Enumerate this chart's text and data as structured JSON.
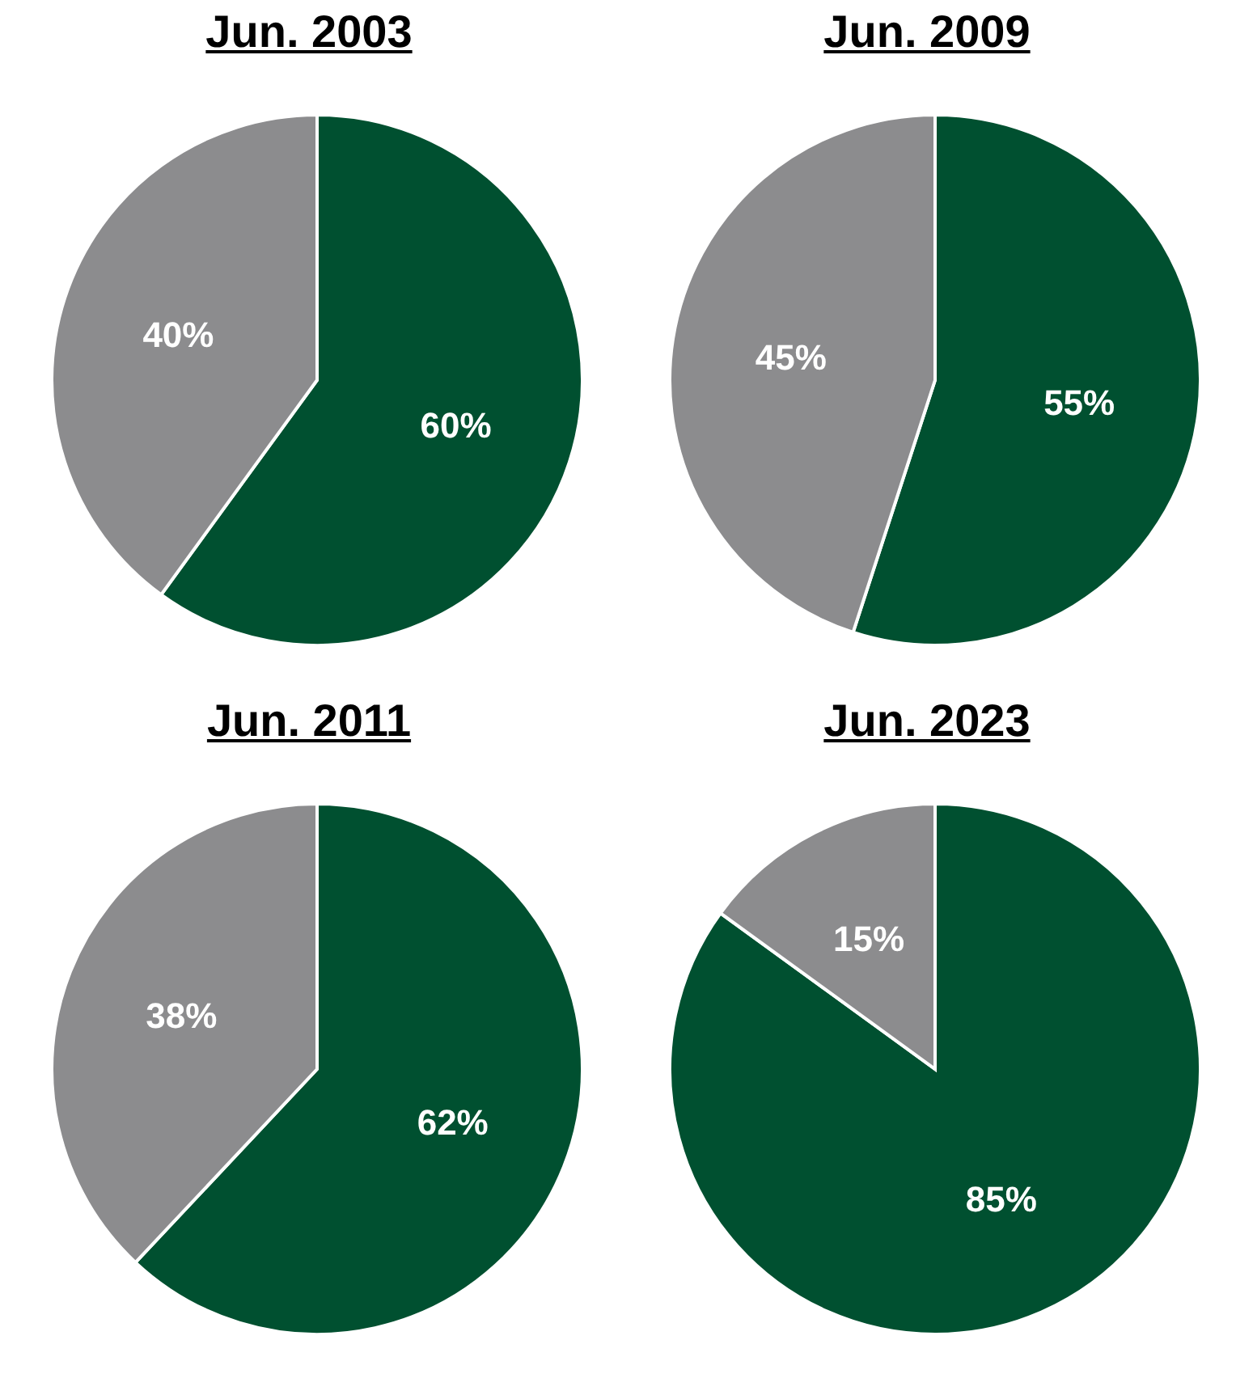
{
  "chart_data": [
    {
      "type": "pie",
      "title": "Jun. 2003",
      "categories": [
        null,
        null
      ],
      "values": [
        60,
        40
      ],
      "colors": [
        "#005030",
        "#8c8c8e"
      ],
      "value_labels": [
        "60%",
        "40%"
      ]
    },
    {
      "type": "pie",
      "title": "Jun. 2009",
      "categories": [
        null,
        null
      ],
      "values": [
        55,
        45
      ],
      "colors": [
        "#005030",
        "#8c8c8e"
      ],
      "value_labels": [
        "55%",
        "45%"
      ]
    },
    {
      "type": "pie",
      "title": "Jun. 2011",
      "categories": [
        null,
        null
      ],
      "values": [
        62,
        38
      ],
      "colors": [
        "#005030",
        "#8c8c8e"
      ],
      "value_labels": [
        "62%",
        "38%"
      ]
    },
    {
      "type": "pie",
      "title": "Jun. 2023",
      "categories": [
        null,
        null
      ],
      "values": [
        85,
        15
      ],
      "colors": [
        "#005030",
        "#8c8c8e"
      ],
      "value_labels": [
        "85%",
        "15%"
      ]
    }
  ]
}
